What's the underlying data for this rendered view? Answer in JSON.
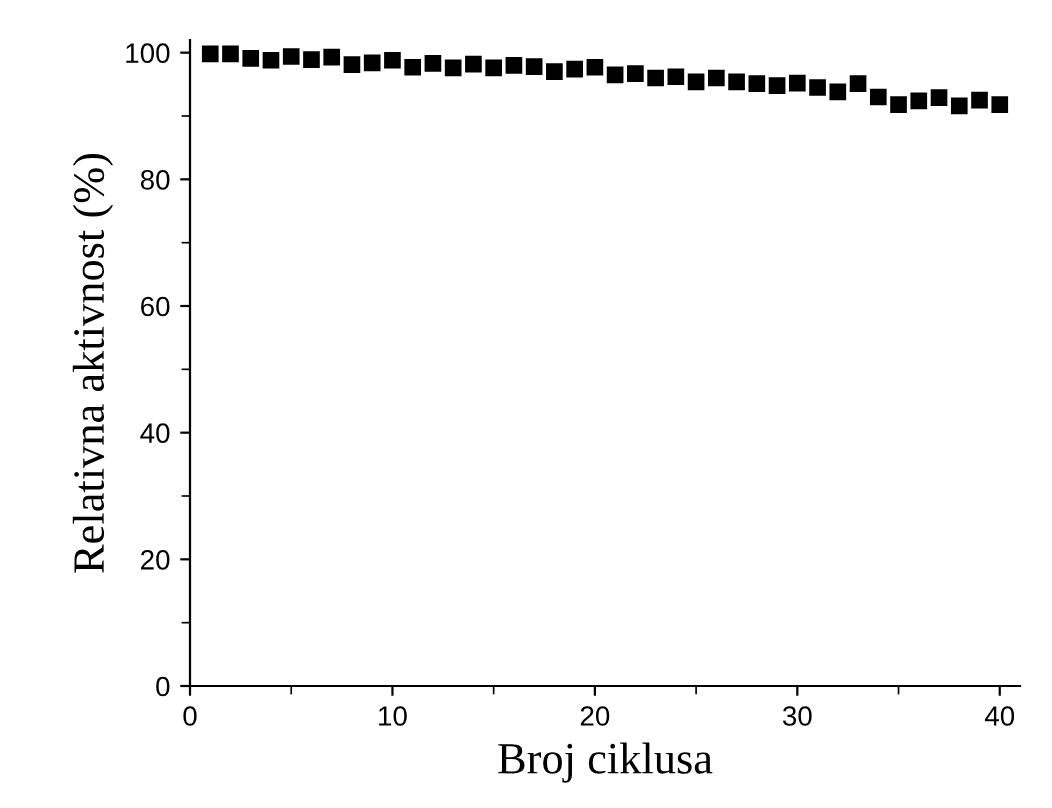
{
  "chart_data": {
    "type": "scatter",
    "xlabel": "Broj ciklusa",
    "ylabel": "Relativna aktivnost (%)",
    "x": [
      1,
      2,
      3,
      4,
      5,
      6,
      7,
      8,
      9,
      10,
      11,
      12,
      13,
      14,
      15,
      16,
      17,
      18,
      19,
      20,
      21,
      22,
      23,
      24,
      25,
      26,
      27,
      28,
      29,
      30,
      31,
      32,
      33,
      34,
      35,
      36,
      37,
      38,
      39,
      40
    ],
    "values": [
      99.8,
      99.8,
      99.1,
      98.8,
      99.4,
      98.9,
      99.3,
      98.1,
      98.4,
      98.8,
      97.7,
      98.3,
      97.6,
      98.2,
      97.6,
      98.0,
      97.8,
      97.0,
      97.4,
      97.7,
      96.5,
      96.7,
      96.0,
      96.2,
      95.4,
      96.0,
      95.4,
      95.1,
      94.8,
      95.2,
      94.5,
      93.8,
      95.1,
      93.0,
      91.8,
      92.4,
      92.9,
      91.6,
      92.5,
      91.8
    ],
    "color": "#000000",
    "marker": "square",
    "xlim": [
      0,
      41
    ],
    "ylim": [
      0,
      102
    ],
    "xticks": [
      0,
      10,
      20,
      30,
      40
    ],
    "yticks": [
      0,
      20,
      40,
      60,
      80,
      100
    ],
    "grid": false,
    "legend": false
  }
}
